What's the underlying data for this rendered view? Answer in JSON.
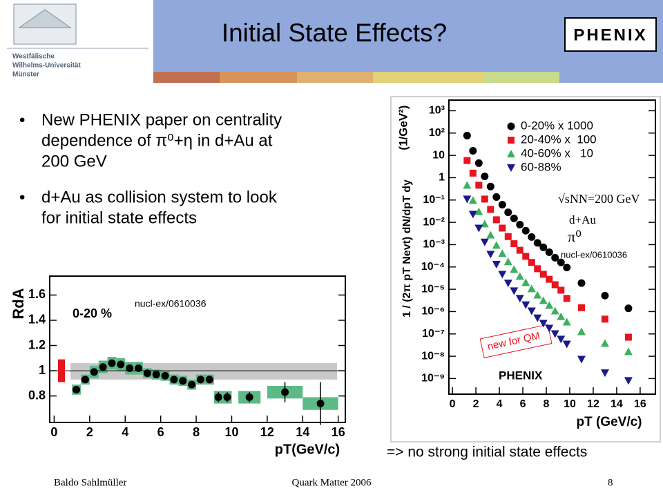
{
  "header": {
    "title": "Initial State Effects?",
    "university": [
      "Westfälische",
      "Wilhelms-Universität",
      "Münster"
    ],
    "logo": "PHENIX"
  },
  "bullets": [
    [
      "New PHENIX paper on centrality",
      "dependence of  π⁰+η in d+Au at",
      "200 GeV"
    ],
    [
      "d+Au as collision system to look",
      "for initial state effects"
    ]
  ],
  "conclusion": "=> no strong initial state effects",
  "footer": {
    "author": "Baldo Sahlmüller",
    "conference": "Quark Matter 2006",
    "page": "8"
  },
  "chart_data": [
    {
      "type": "scatter",
      "ylabel": "RdA",
      "xlabel": "pT(GeV/c)",
      "annotations": [
        "0-20 %",
        "nucl-ex/0610036"
      ],
      "color": "#000000",
      "sys_color": "#5cba86",
      "band_color": "#c8c8c8",
      "norm_color": "#e8141e",
      "xlim": [
        -0.25,
        16.4
      ],
      "ylim": [
        0.59,
        1.75
      ],
      "xticks": [
        0,
        2,
        4,
        6,
        8,
        10,
        12,
        14,
        16
      ],
      "yticks": [
        0.8,
        1,
        1.2,
        1.4,
        1.6
      ],
      "reference": 1,
      "band": [
        0.93,
        1.06
      ],
      "norm_error": 0.09,
      "x": [
        1.25,
        1.75,
        2.25,
        2.75,
        3.25,
        3.75,
        4.25,
        4.75,
        5.25,
        5.75,
        6.25,
        6.75,
        7.25,
        7.75,
        8.25,
        8.75,
        9.25,
        9.75,
        11,
        13,
        15
      ],
      "values": [
        0.85,
        0.93,
        0.99,
        1.03,
        1.06,
        1.05,
        1.02,
        1.02,
        0.98,
        0.97,
        0.96,
        0.93,
        0.92,
        0.89,
        0.93,
        0.93,
        0.79,
        0.79,
        0.79,
        0.83,
        0.74
      ],
      "errors": [
        0.02,
        0.02,
        0.015,
        0.015,
        0.015,
        0.015,
        0.015,
        0.015,
        0.015,
        0.015,
        0.015,
        0.015,
        0.02,
        0.02,
        0.03,
        0.03,
        0.04,
        0.04,
        0.04,
        0.08,
        0.17
      ],
      "sys": [
        0.04,
        0.04,
        0.05,
        0.05,
        0.05,
        0.05,
        0.05,
        0.05,
        0.04,
        0.04,
        0.04,
        0.04,
        0.04,
        0.04,
        0.04,
        0.04,
        0.05,
        0.05,
        0.05,
        0.05,
        0.05
      ]
    },
    {
      "type": "scatter",
      "log_y": true,
      "ylabel": "1 / (2π pT Nevt) dN/dpT dy",
      "ylabel_unit": "(1/GeV²)",
      "xlabel": "pT (GeV/c)",
      "annotations": [
        "√sNN=200 GeV",
        "d+Au",
        "π⁰",
        "nucl-ex/0610036",
        "new for QM",
        "PHENIX"
      ],
      "xlim": [
        -0.3,
        17.3
      ],
      "ylim": [
        2e-10,
        3000
      ],
      "xticks": [
        0,
        2,
        4,
        6,
        8,
        10,
        12,
        14,
        16
      ],
      "yticks": [
        {
          "value": 1e-09,
          "label": "10⁻⁹"
        },
        {
          "value": 1e-08,
          "label": "10⁻⁸"
        },
        {
          "value": 1e-07,
          "label": "10⁻⁷"
        },
        {
          "value": 1e-06,
          "label": "10⁻⁶"
        },
        {
          "value": 1e-05,
          "label": "10⁻⁵"
        },
        {
          "value": 0.0001,
          "label": "10⁻⁴"
        },
        {
          "value": 0.001,
          "label": "10⁻³"
        },
        {
          "value": 0.01,
          "label": "10⁻²"
        },
        {
          "value": 0.1,
          "label": "10⁻¹"
        },
        1,
        10,
        {
          "value": 100,
          "label": "10²"
        },
        {
          "value": 1000,
          "label": "10³"
        }
      ],
      "x": [
        1.25,
        1.75,
        2.25,
        2.75,
        3.25,
        3.75,
        4.25,
        4.75,
        5.25,
        5.75,
        6.25,
        6.75,
        7.25,
        7.75,
        8.25,
        8.75,
        9.25,
        9.75,
        11,
        13,
        15
      ],
      "series": [
        {
          "name": "0-20% x 1000",
          "color": "#000000",
          "marker": "circle",
          "values": [
            77,
            16,
            4.5,
            1.15,
            0.4,
            0.136,
            0.062,
            0.028,
            0.015,
            0.0079,
            0.0042,
            0.0022,
            0.0012,
            0.00076,
            0.00046,
            0.00026,
            0.00016,
            9.5e-05,
            1.9e-05,
            5.2e-06,
            1.4e-06
          ]
        },
        {
          "name": "20-40% x  100",
          "color": "#e8141e",
          "marker": "square",
          "values": [
            5.9,
            1.6,
            0.46,
            0.11,
            0.038,
            0.013,
            0.0055,
            0.0023,
            0.0011,
            0.00056,
            0.0003,
            0.00016,
            8.3e-05,
            4.7e-05,
            2.8e-05,
            1.6e-05,
            9.1e-06,
            3.9e-06,
            1.5e-06,
            4.6e-07,
            7.1e-08
          ]
        },
        {
          "name": "40-60% x   10",
          "color": "#3cb060",
          "marker": "triangle-up",
          "values": [
            0.46,
            0.096,
            0.03,
            0.0085,
            0.0027,
            0.00093,
            0.0004,
            0.00017,
            7.8e-05,
            3.8e-05,
            2e-05,
            1.05e-05,
            5.5e-06,
            3.1e-06,
            1.9e-06,
            1.07e-06,
            6e-07,
            3.4e-07,
            1.25e-07,
            3.8e-08,
            1.6e-08
          ]
        },
        {
          "name": "60-88%",
          "color": "#1a1a8c",
          "marker": "triangle-down",
          "values": [
            0.11,
            0.023,
            0.0055,
            0.0013,
            0.00037,
            0.00013,
            4.7e-05,
            1.9e-05,
            8.5e-06,
            3.9e-06,
            2e-06,
            1.07e-06,
            5.2e-07,
            3e-07,
            1.8e-07,
            1.02e-07,
            5.8e-08,
            3.5e-08,
            7.3e-09,
            1.8e-09,
            8.1e-10
          ]
        }
      ]
    }
  ]
}
